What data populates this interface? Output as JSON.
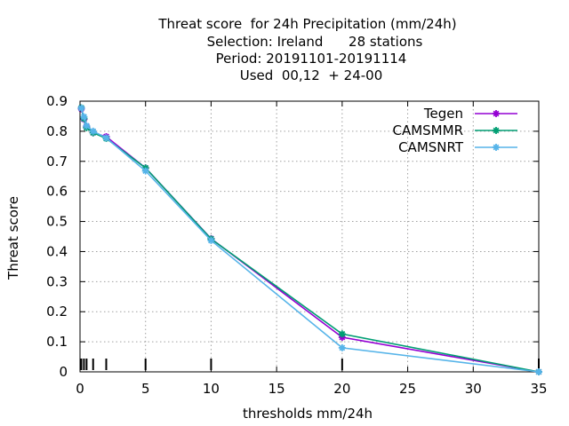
{
  "chart_data": {
    "type": "line",
    "title_lines": [
      "Threat score  for 24h Precipitation (mm/24h)",
      "Selection: Ireland      28 stations",
      "Period: 20191101-20191114",
      "Used  00,12  + 24-00"
    ],
    "xlabel": "thresholds mm/24h",
    "ylabel": "Threat score",
    "xlim": [
      0,
      35
    ],
    "ylim": [
      0,
      0.9
    ],
    "xticks": [
      0,
      5,
      10,
      15,
      20,
      25,
      30,
      35
    ],
    "yticks": [
      0,
      0.1,
      0.2,
      0.3,
      0.4,
      0.5,
      0.6,
      0.7,
      0.8,
      0.9
    ],
    "xtick_labels": [
      "0",
      "5",
      "10",
      "15",
      "20",
      "25",
      "30",
      "35"
    ],
    "ytick_labels": [
      "0",
      "0.1",
      "0.2",
      "0.3",
      "0.4",
      "0.5",
      "0.6",
      "0.7",
      "0.8",
      "0.9"
    ],
    "threshold_marks": [
      0.1,
      0.3,
      0.5,
      1,
      2,
      5,
      10,
      20,
      35
    ],
    "grid": true,
    "legend_position": "top-right",
    "series": [
      {
        "name": "Tegen",
        "color": "#9400d3",
        "x": [
          0.1,
          0.3,
          0.5,
          1,
          2,
          5,
          10,
          20,
          35
        ],
        "y": [
          0.875,
          0.84,
          0.815,
          0.795,
          0.782,
          0.678,
          0.443,
          0.115,
          0.0
        ]
      },
      {
        "name": "CAMSMMR",
        "color": "#009e73",
        "x": [
          0.1,
          0.3,
          0.5,
          1,
          2,
          5,
          10,
          20,
          35
        ],
        "y": [
          0.878,
          0.842,
          0.812,
          0.795,
          0.776,
          0.678,
          0.442,
          0.126,
          0.0
        ]
      },
      {
        "name": "CAMSNRT",
        "color": "#56b4e9",
        "x": [
          0.1,
          0.3,
          0.5,
          1,
          2,
          5,
          10,
          20,
          35
        ],
        "y": [
          0.877,
          0.848,
          0.818,
          0.8,
          0.778,
          0.668,
          0.437,
          0.08,
          0.0
        ]
      }
    ]
  }
}
